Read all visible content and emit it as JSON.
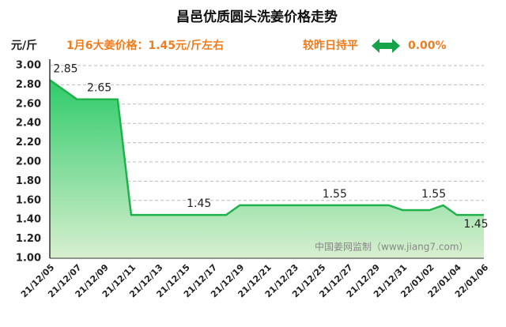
{
  "chart_data": {
    "type": "area",
    "title": "昌邑优质圆头洗姜价格走势",
    "y_unit": "元/斤",
    "price_note": "1月6大姜价格：1.45元/斤左右",
    "change_label": "较昨日持平",
    "change_value": "0.00%",
    "watermark": "中国姜网监制（www.jiang7.com）",
    "categories": [
      "21/12/05",
      null,
      "21/12/07",
      null,
      "21/12/09",
      null,
      "21/12/11",
      null,
      "21/12/13",
      null,
      "21/12/15",
      null,
      "21/12/17",
      null,
      "21/12/19",
      null,
      "21/12/21",
      null,
      "21/12/23",
      null,
      "21/12/25",
      null,
      "21/12/27",
      null,
      "21/12/29",
      null,
      "21/12/31",
      null,
      "22/01/02",
      null,
      "22/01/04",
      null,
      "22/01/06"
    ],
    "series": [
      {
        "color": "#1fb14a",
        "values": [
          2.85,
          2.75,
          2.65,
          2.65,
          2.65,
          2.65,
          1.45,
          1.45,
          1.45,
          1.45,
          1.45,
          1.45,
          1.45,
          1.45,
          1.55,
          1.55,
          1.55,
          1.55,
          1.55,
          1.55,
          1.55,
          1.55,
          1.55,
          1.55,
          1.55,
          1.55,
          1.5,
          1.5,
          1.5,
          1.55,
          1.45,
          1.45,
          1.45
        ],
        "value_labels": [
          "2.85",
          null,
          null,
          null,
          "2.65",
          null,
          null,
          null,
          null,
          null,
          null,
          "1.45",
          null,
          null,
          null,
          null,
          null,
          null,
          null,
          null,
          null,
          "1.55",
          null,
          null,
          null,
          null,
          null,
          null,
          null,
          "1.55",
          null,
          null,
          "1.45"
        ]
      }
    ],
    "ylim": [
      1,
      3
    ],
    "yticks": [
      {
        "value": 1,
        "label": "1.00"
      },
      {
        "value": 1.2,
        "label": "1.20"
      },
      {
        "value": 1.4,
        "label": "1.40"
      },
      {
        "value": 1.6,
        "label": "1.60"
      },
      {
        "value": 1.8,
        "label": "1.80"
      },
      {
        "value": 2,
        "label": "2.00"
      },
      {
        "value": 2.2,
        "label": "2.20"
      },
      {
        "value": 2.4,
        "label": "2.40"
      },
      {
        "value": 2.6,
        "label": "2.60"
      },
      {
        "value": 2.8,
        "label": "2.80"
      },
      {
        "value": 3,
        "label": "3.00"
      }
    ],
    "grid": true
  }
}
